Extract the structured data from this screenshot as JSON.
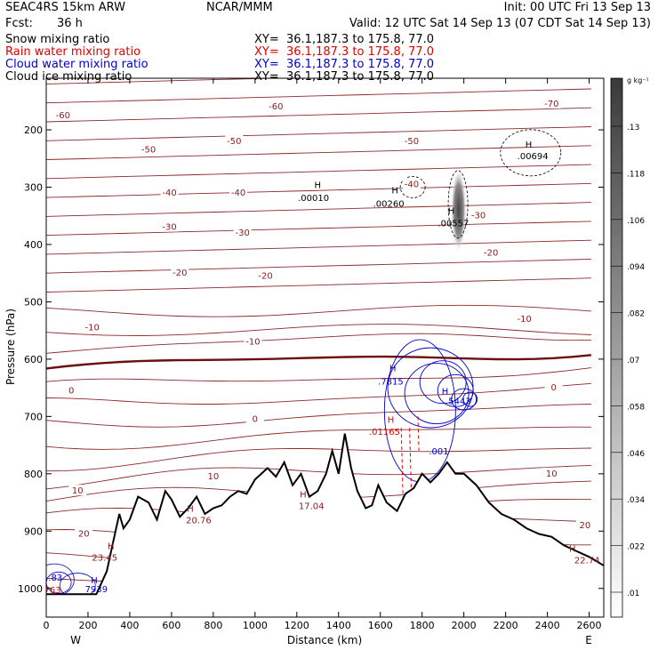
{
  "header": {
    "model": "SEAC4RS 15km ARW",
    "org": "NCAR/MMM",
    "init": "Init: 00 UTC Fri 13 Sep 13",
    "fcst_label": "Fcst:",
    "fcst_value": "36 h",
    "valid": "Valid: 12 UTC Sat 14 Sep 13 (07 CDT Sat 14 Sep 13)"
  },
  "fields": [
    {
      "name": "Snow mixing ratio",
      "xy": "XY=  36.1,187.3 to 175.8, 77.0",
      "color": "#000000"
    },
    {
      "name": "Rain water mixing ratio",
      "xy": "XY=  36.1,187.3 to 175.8, 77.0",
      "color": "#e00000"
    },
    {
      "name": "Cloud water mixing ratio",
      "xy": "XY=  36.1,187.3 to 175.8, 77.0",
      "color": "#0000cc"
    },
    {
      "name": "Cloud ice mixing ratio",
      "xy": "XY=  36.1,187.3 to 175.8, 77.0",
      "color": "#000000"
    }
  ],
  "chart_data": {
    "type": "cross-section",
    "xlabel": "Distance (km)",
    "ylabel": "Pressure (hPa)",
    "xlim": [
      0,
      2670
    ],
    "ylim": [
      1050,
      110
    ],
    "x_ticks": [
      0,
      200,
      400,
      600,
      800,
      1000,
      1200,
      1400,
      1600,
      1800,
      2000,
      2200,
      2400,
      2600
    ],
    "y_ticks": [
      200,
      300,
      400,
      500,
      600,
      700,
      800,
      900,
      1000
    ],
    "x_ends": {
      "left": "W",
      "right": "E"
    },
    "colorbar": {
      "unit": "g kg⁻¹",
      "ticks": [
        ".13",
        ".118",
        ".106",
        ".094",
        ".082",
        ".07",
        ".058",
        ".046",
        ".034",
        ".022",
        ".01"
      ]
    },
    "temperature_labels": [
      {
        "text": "-70",
        "x": 2420,
        "p": 155
      },
      {
        "text": "-60",
        "x": 80,
        "p": 175
      },
      {
        "text": "-60",
        "x": 1100,
        "p": 160
      },
      {
        "text": "-50",
        "x": 490,
        "p": 235
      },
      {
        "text": "-50",
        "x": 900,
        "p": 220
      },
      {
        "text": "-50",
        "x": 1750,
        "p": 220
      },
      {
        "text": "-40",
        "x": 590,
        "p": 310
      },
      {
        "text": "-40",
        "x": 920,
        "p": 310
      },
      {
        "text": "-40",
        "x": 1750,
        "p": 295
      },
      {
        "text": "-30",
        "x": 590,
        "p": 370
      },
      {
        "text": "-30",
        "x": 940,
        "p": 380
      },
      {
        "text": "-30",
        "x": 2070,
        "p": 350
      },
      {
        "text": "-20",
        "x": 640,
        "p": 450
      },
      {
        "text": "-20",
        "x": 1050,
        "p": 455
      },
      {
        "text": "-20",
        "x": 2130,
        "p": 415
      },
      {
        "text": "-10",
        "x": 220,
        "p": 545
      },
      {
        "text": "-10",
        "x": 990,
        "p": 570
      },
      {
        "text": "-10",
        "x": 2290,
        "p": 530
      },
      {
        "text": "0",
        "x": 120,
        "p": 655
      },
      {
        "text": "0",
        "x": 1000,
        "p": 705
      },
      {
        "text": "0",
        "x": 2430,
        "p": 650
      },
      {
        "text": "10",
        "x": 150,
        "p": 830
      },
      {
        "text": "10",
        "x": 800,
        "p": 805
      },
      {
        "text": "10",
        "x": 2420,
        "p": 800
      },
      {
        "text": "20",
        "x": 180,
        "p": 905
      },
      {
        "text": "20",
        "x": 2580,
        "p": 890
      }
    ],
    "extrema_labels": [
      {
        "text": ".00010",
        "x": 1280,
        "p": 318,
        "color": "#000000"
      },
      {
        "text": ".00260",
        "x": 1640,
        "p": 328,
        "color": "#000000"
      },
      {
        "text": ".00557",
        "x": 1950,
        "p": 362,
        "color": "#000000"
      },
      {
        "text": ".00694",
        "x": 2330,
        "p": 245,
        "color": "#000000"
      },
      {
        "text": ".7815",
        "x": 1650,
        "p": 638,
        "color": "#0000cc"
      },
      {
        "text": "5443",
        "x": 1980,
        "p": 672,
        "color": "#0000cc"
      },
      {
        "text": ".01165",
        "x": 1620,
        "p": 726,
        "color": "#e00000"
      },
      {
        "text": ".001",
        "x": 1880,
        "p": 760,
        "color": "#0000cc"
      },
      {
        "text": "23.45",
        "x": 280,
        "p": 945,
        "color": "#8b1a1a"
      },
      {
        "text": "20.76",
        "x": 730,
        "p": 880,
        "color": "#8b1a1a"
      },
      {
        "text": "17.04",
        "x": 1270,
        "p": 855,
        "color": "#8b1a1a"
      },
      {
        "text": "22.74",
        "x": 2590,
        "p": 950,
        "color": "#8b1a1a"
      },
      {
        "text": "1.83",
        "x": 30,
        "p": 980,
        "color": "#0000cc"
      },
      {
        "text": "7939",
        "x": 240,
        "p": 1000,
        "color": "#0000cc"
      },
      {
        "text": "763",
        "x": 30,
        "p": 1002,
        "color": "#e00000"
      }
    ],
    "highs": [
      {
        "text": "H",
        "x": 1300,
        "p": 295,
        "color": "#000000"
      },
      {
        "text": "H",
        "x": 1670,
        "p": 305,
        "color": "#000000"
      },
      {
        "text": "H",
        "x": 1940,
        "p": 340,
        "color": "#000000"
      },
      {
        "text": "H",
        "x": 2310,
        "p": 225,
        "color": "#000000"
      },
      {
        "text": "H",
        "x": 1660,
        "p": 615,
        "color": "#0000cc"
      },
      {
        "text": "H",
        "x": 1910,
        "p": 655,
        "color": "#0000cc"
      },
      {
        "text": "H",
        "x": 1650,
        "p": 705,
        "color": "#e00000"
      },
      {
        "text": "H",
        "x": 310,
        "p": 925,
        "color": "#8b1a1a"
      },
      {
        "text": "H",
        "x": 690,
        "p": 860,
        "color": "#8b1a1a"
      },
      {
        "text": "H",
        "x": 1230,
        "p": 835,
        "color": "#8b1a1a"
      },
      {
        "text": "H",
        "x": 2520,
        "p": 930,
        "color": "#8b1a1a"
      },
      {
        "text": "H",
        "x": 230,
        "p": 985,
        "color": "#0000cc"
      }
    ],
    "terrain": [
      [
        0,
        1010
      ],
      [
        240,
        1010
      ],
      [
        290,
        970
      ],
      [
        320,
        920
      ],
      [
        350,
        870
      ],
      [
        370,
        895
      ],
      [
        400,
        880
      ],
      [
        440,
        840
      ],
      [
        490,
        850
      ],
      [
        530,
        880
      ],
      [
        570,
        830
      ],
      [
        600,
        845
      ],
      [
        640,
        875
      ],
      [
        680,
        860
      ],
      [
        720,
        840
      ],
      [
        760,
        870
      ],
      [
        800,
        860
      ],
      [
        840,
        855
      ],
      [
        880,
        840
      ],
      [
        920,
        830
      ],
      [
        960,
        835
      ],
      [
        1000,
        810
      ],
      [
        1060,
        790
      ],
      [
        1100,
        805
      ],
      [
        1140,
        780
      ],
      [
        1180,
        820
      ],
      [
        1220,
        800
      ],
      [
        1260,
        840
      ],
      [
        1300,
        830
      ],
      [
        1340,
        800
      ],
      [
        1370,
        760
      ],
      [
        1400,
        800
      ],
      [
        1430,
        730
      ],
      [
        1460,
        790
      ],
      [
        1490,
        830
      ],
      [
        1530,
        860
      ],
      [
        1560,
        855
      ],
      [
        1590,
        820
      ],
      [
        1630,
        850
      ],
      [
        1680,
        865
      ],
      [
        1720,
        835
      ],
      [
        1760,
        825
      ],
      [
        1800,
        800
      ],
      [
        1840,
        815
      ],
      [
        1880,
        800
      ],
      [
        1920,
        780
      ],
      [
        1960,
        800
      ],
      [
        2000,
        800
      ],
      [
        2060,
        820
      ],
      [
        2120,
        850
      ],
      [
        2180,
        870
      ],
      [
        2240,
        880
      ],
      [
        2300,
        895
      ],
      [
        2360,
        905
      ],
      [
        2420,
        910
      ],
      [
        2480,
        925
      ],
      [
        2540,
        935
      ],
      [
        2600,
        945
      ],
      [
        2670,
        960
      ]
    ]
  }
}
